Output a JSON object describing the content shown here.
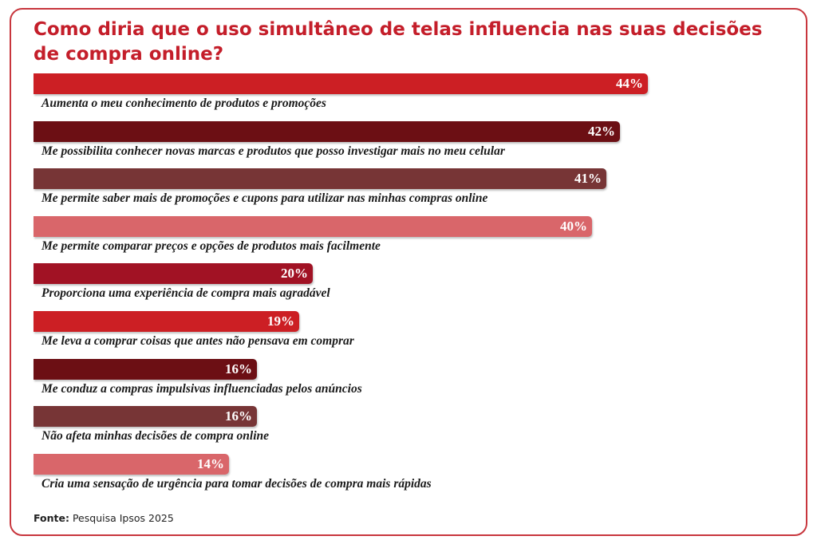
{
  "chart_data": {
    "type": "bar",
    "orientation": "horizontal",
    "title": "Como diria que o uso simultâneo de telas influencia nas suas decisões de compra online?",
    "categories": [
      "Aumenta o meu conhecimento de produtos e promoções",
      "Me possibilita conhecer novas marcas e produtos que posso investigar mais no meu celular",
      "Me permite saber mais de promoções e cupons para utilizar nas minhas compras online",
      "Me permite comparar preços e opções de produtos mais facilmente",
      "Proporciona uma experiência de compra mais agradável",
      "Me leva a comprar coisas que antes não pensava em comprar",
      "Me conduz a compras impulsivas influenciadas pelos anúncios",
      "Não afeta minhas decisões de compra online",
      "Cria uma sensação de urgência para tomar decisões de compra mais rápidas"
    ],
    "values": [
      44,
      42,
      41,
      40,
      20,
      19,
      16,
      16,
      14
    ],
    "value_labels": [
      "44%",
      "42%",
      "41%",
      "40%",
      "20%",
      "19%",
      "16%",
      "16%",
      "14%"
    ],
    "colors": [
      "#cc1f24",
      "#6c0f14",
      "#773536",
      "#d9666a",
      "#a11224",
      "#cc1f24",
      "#6c0f14",
      "#773536",
      "#d9666a"
    ],
    "xlim": [
      0,
      44
    ],
    "grid": false,
    "legend": false
  },
  "source": {
    "label": "Fonte:",
    "text": " Pesquisa Ipsos 2025"
  }
}
